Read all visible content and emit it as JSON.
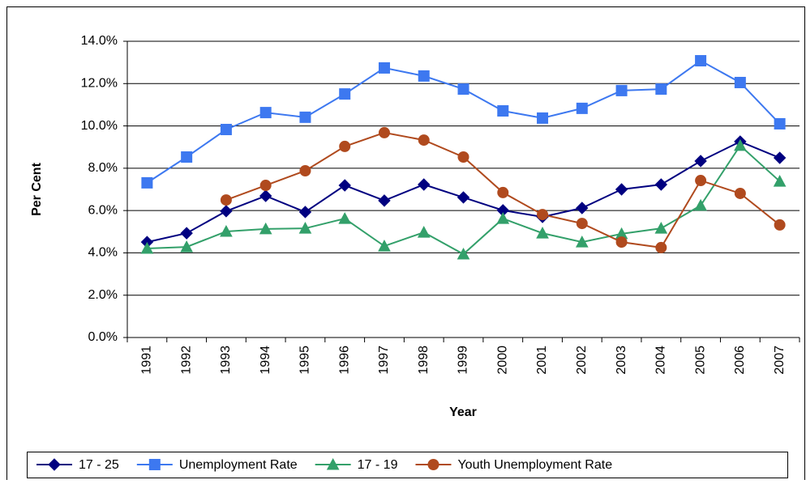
{
  "chart_data": {
    "type": "line",
    "y_label": "Per Cent",
    "x_label": "Year",
    "categories": [
      "1991",
      "1992",
      "1993",
      "1994",
      "1995",
      "1996",
      "1997",
      "1998",
      "1999",
      "2000",
      "2001",
      "2002",
      "2003",
      "2004",
      "2005",
      "2006",
      "2007"
    ],
    "series": [
      {
        "name": "17 - 25",
        "color": "#000080",
        "marker": "diamond",
        "values": [
          4.51,
          4.93,
          5.97,
          6.69,
          5.93,
          7.19,
          6.47,
          7.23,
          6.62,
          6.01,
          5.7,
          6.12,
          7.0,
          7.23,
          8.34,
          9.26,
          8.49
        ]
      },
      {
        "name": "Unemployment Rate",
        "color": "#3d78f0",
        "marker": "square",
        "values": [
          7.31,
          8.53,
          9.83,
          10.63,
          10.41,
          11.51,
          12.74,
          12.36,
          11.74,
          10.71,
          10.37,
          10.83,
          11.67,
          11.74,
          13.08,
          12.05,
          10.1
        ]
      },
      {
        "name": "17 - 19",
        "color": "#33a06a",
        "marker": "triangle",
        "values": [
          4.21,
          4.28,
          5.01,
          5.13,
          5.16,
          5.62,
          4.32,
          4.97,
          3.94,
          5.62,
          4.93,
          4.51,
          4.9,
          5.16,
          6.24,
          9.07,
          7.38
        ]
      },
      {
        "name": "Youth Unemployment Rate",
        "color": "#b04a1e",
        "marker": "circle",
        "values": [
          null,
          null,
          6.5,
          7.19,
          7.88,
          9.03,
          9.68,
          9.33,
          8.53,
          6.85,
          5.81,
          5.39,
          4.51,
          4.25,
          7.42,
          6.81,
          5.32
        ]
      }
    ],
    "ylim": [
      0,
      14
    ],
    "yticks": [
      {
        "value": 0,
        "label": "0.0%"
      },
      {
        "value": 2,
        "label": "2.0%"
      },
      {
        "value": 4,
        "label": "4.0%"
      },
      {
        "value": 6,
        "label": "6.0%"
      },
      {
        "value": 8,
        "label": "8.0%"
      },
      {
        "value": 10,
        "label": "10.0%"
      },
      {
        "value": 12,
        "label": "12.0%"
      },
      {
        "value": 14,
        "label": "14.0%"
      }
    ],
    "grid": true,
    "legend": "bottom"
  }
}
